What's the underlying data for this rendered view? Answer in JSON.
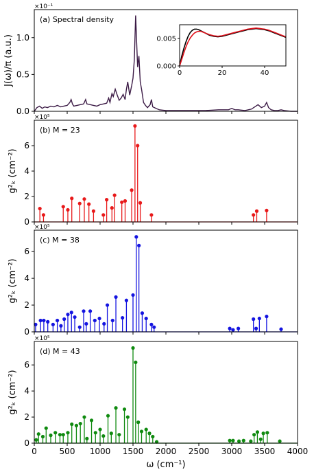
{
  "chart_data": [
    {
      "type": "line",
      "panel_label": "(a) Spectral density",
      "ylabel": "J(ω)/π (a.u.)",
      "y_multiplier": "×10⁻¹",
      "xlim": [
        0,
        4000
      ],
      "ylim": [
        0,
        1.38
      ],
      "yticks": [
        0.0,
        0.5,
        1.0
      ],
      "ytick_labels": [
        "0.0",
        "0.5",
        "1.0"
      ],
      "color": "#3b1a45",
      "x": [
        0,
        40,
        80,
        120,
        160,
        200,
        250,
        300,
        350,
        400,
        450,
        500,
        540,
        560,
        580,
        600,
        650,
        700,
        750,
        780,
        800,
        850,
        900,
        950,
        1000,
        1050,
        1100,
        1130,
        1150,
        1180,
        1200,
        1230,
        1260,
        1290,
        1320,
        1350,
        1380,
        1400,
        1420,
        1450,
        1480,
        1500,
        1520,
        1540,
        1555,
        1570,
        1590,
        1610,
        1630,
        1660,
        1690,
        1720,
        1760,
        1780,
        1800,
        1850,
        1900,
        2000,
        2200,
        2400,
        2600,
        2800,
        2950,
        3000,
        3050,
        3100,
        3200,
        3300,
        3350,
        3400,
        3450,
        3500,
        3530,
        3560,
        3600,
        3650,
        3700,
        3750,
        3800,
        3900,
        4000
      ],
      "y": [
        0.0,
        0.05,
        0.07,
        0.04,
        0.06,
        0.05,
        0.07,
        0.06,
        0.08,
        0.06,
        0.07,
        0.08,
        0.12,
        0.16,
        0.1,
        0.07,
        0.08,
        0.09,
        0.1,
        0.16,
        0.1,
        0.09,
        0.08,
        0.07,
        0.09,
        0.1,
        0.11,
        0.18,
        0.12,
        0.24,
        0.2,
        0.3,
        0.22,
        0.15,
        0.18,
        0.23,
        0.16,
        0.3,
        0.4,
        0.22,
        0.35,
        0.45,
        0.7,
        1.3,
        0.95,
        0.6,
        0.75,
        0.4,
        0.3,
        0.12,
        0.08,
        0.05,
        0.09,
        0.16,
        0.06,
        0.04,
        0.02,
        0.01,
        0.01,
        0.01,
        0.01,
        0.02,
        0.02,
        0.04,
        0.02,
        0.02,
        0.01,
        0.03,
        0.06,
        0.09,
        0.05,
        0.07,
        0.12,
        0.05,
        0.02,
        0.01,
        0.01,
        0.02,
        0.01,
        0.0,
        0.0
      ],
      "inset": {
        "xlim": [
          0,
          50
        ],
        "ylim": [
          0,
          0.0075
        ],
        "xticks": [
          0,
          20,
          40
        ],
        "xtick_labels": [
          "0",
          "20",
          "40"
        ],
        "yticks": [
          0.0,
          0.005
        ],
        "ytick_labels": [
          "0.000",
          "0.005"
        ],
        "series": [
          {
            "color": "#000000",
            "x": [
              0,
              1,
              2,
              3,
              4,
              5,
              6,
              7,
              8,
              9,
              10,
              12,
              14,
              16,
              18,
              20,
              22,
              24,
              26,
              28,
              30,
              32,
              34,
              36,
              38,
              40,
              42,
              44,
              46,
              48,
              50
            ],
            "y": [
              0.0,
              0.0018,
              0.0032,
              0.0044,
              0.0054,
              0.0061,
              0.0065,
              0.0067,
              0.0067,
              0.0066,
              0.0064,
              0.006,
              0.0056,
              0.0054,
              0.0053,
              0.0054,
              0.0056,
              0.0058,
              0.006,
              0.0062,
              0.0064,
              0.0066,
              0.0067,
              0.0068,
              0.0067,
              0.0066,
              0.0064,
              0.0061,
              0.0058,
              0.0055,
              0.0052
            ]
          },
          {
            "color": "#e0101a",
            "x": [
              0,
              1,
              2,
              3,
              4,
              5,
              6,
              7,
              8,
              9,
              10,
              12,
              14,
              16,
              18,
              20,
              22,
              24,
              26,
              28,
              30,
              32,
              34,
              36,
              38,
              40,
              42,
              44,
              46,
              48,
              50
            ],
            "y": [
              0.0,
              0.0012,
              0.0024,
              0.0035,
              0.0044,
              0.0051,
              0.0056,
              0.006,
              0.0062,
              0.0063,
              0.0063,
              0.006,
              0.0057,
              0.0055,
              0.0054,
              0.0055,
              0.0057,
              0.0059,
              0.0061,
              0.0063,
              0.0065,
              0.0067,
              0.0068,
              0.0069,
              0.0068,
              0.0067,
              0.0065,
              0.0062,
              0.0059,
              0.0056,
              0.0053
            ]
          }
        ]
      }
    },
    {
      "type": "stem",
      "panel_label": "(b) M = 23",
      "ylabel": "g²ₖ (cm⁻²)",
      "y_multiplier": "×10⁵",
      "xlim": [
        0,
        4000
      ],
      "ylim": [
        0,
        8.0
      ],
      "yticks": [
        0,
        2,
        4,
        6
      ],
      "ytick_labels": [
        "0",
        "2",
        "4",
        "6"
      ],
      "color": "#e8191a",
      "x": [
        85,
        140,
        440,
        510,
        570,
        690,
        760,
        830,
        900,
        1050,
        1100,
        1180,
        1220,
        1330,
        1380,
        1480,
        1530,
        1570,
        1610,
        1780,
        3330,
        3380,
        3530
      ],
      "y": [
        1.05,
        0.55,
        1.2,
        0.95,
        1.85,
        1.45,
        1.8,
        1.4,
        0.85,
        0.55,
        1.75,
        1.1,
        2.1,
        1.55,
        1.65,
        2.5,
        7.55,
        6.0,
        1.5,
        0.55,
        0.55,
        0.85,
        0.9
      ]
    },
    {
      "type": "stem",
      "panel_label": "(c) M = 38",
      "ylabel": "g²ₖ (cm⁻²)",
      "y_multiplier": "×10⁵",
      "xlim": [
        0,
        4000
      ],
      "ylim": [
        0,
        7.6
      ],
      "yticks": [
        0,
        2,
        4,
        6
      ],
      "ytick_labels": [
        "0",
        "2",
        "4",
        "6"
      ],
      "color": "#1414e0",
      "x": [
        20,
        95,
        145,
        205,
        285,
        350,
        405,
        455,
        510,
        565,
        615,
        690,
        750,
        790,
        850,
        920,
        990,
        1060,
        1110,
        1190,
        1240,
        1340,
        1400,
        1500,
        1550,
        1590,
        1640,
        1700,
        1780,
        1820,
        2970,
        3020,
        3100,
        3330,
        3370,
        3420,
        3530,
        3750
      ],
      "y": [
        0.55,
        0.85,
        0.85,
        0.75,
        0.55,
        0.85,
        0.45,
        0.95,
        1.3,
        1.45,
        1.1,
        0.35,
        1.55,
        0.6,
        1.55,
        0.85,
        1.0,
        0.6,
        2.0,
        0.85,
        2.6,
        1.05,
        2.35,
        2.75,
        7.1,
        6.45,
        1.4,
        1.0,
        0.55,
        0.35,
        0.25,
        0.15,
        0.25,
        0.95,
        0.25,
        1.0,
        1.15,
        0.2
      ]
    },
    {
      "type": "stem",
      "panel_label": "(d) M = 43",
      "ylabel": "g²ₖ (cm⁻²)",
      "y_multiplier": "×10⁵",
      "xlim": [
        0,
        4000
      ],
      "ylim": [
        0,
        7.8
      ],
      "yticks": [
        0,
        2,
        4,
        6
      ],
      "ytick_labels": [
        "0",
        "2",
        "4",
        "6"
      ],
      "color": "#0f8a0f",
      "x": [
        30,
        65,
        130,
        180,
        250,
        320,
        390,
        440,
        510,
        570,
        640,
        700,
        760,
        800,
        870,
        930,
        1000,
        1050,
        1120,
        1170,
        1240,
        1290,
        1370,
        1420,
        1500,
        1540,
        1580,
        1630,
        1700,
        1750,
        1800,
        1860,
        2970,
        3020,
        3110,
        3180,
        3290,
        3340,
        3390,
        3440,
        3480,
        3540,
        3730
      ],
      "y": [
        0.25,
        0.7,
        0.5,
        1.15,
        0.6,
        0.8,
        0.65,
        0.65,
        0.8,
        1.45,
        1.35,
        1.5,
        2.0,
        0.35,
        1.75,
        0.8,
        1.05,
        0.55,
        2.1,
        0.75,
        2.7,
        0.65,
        2.6,
        2.0,
        7.3,
        6.2,
        1.6,
        0.9,
        1.05,
        0.75,
        0.5,
        0.1,
        0.2,
        0.2,
        0.15,
        0.2,
        0.15,
        0.65,
        0.85,
        0.3,
        0.75,
        0.8,
        0.15
      ]
    }
  ],
  "x_axis": {
    "label": "ω (cm⁻¹)",
    "ticks": [
      0,
      500,
      1000,
      1500,
      2000,
      2500,
      3000,
      3500,
      4000
    ],
    "tick_labels": [
      "0",
      "500",
      "1000",
      "1500",
      "2000",
      "2500",
      "3000",
      "3500",
      "4000"
    ]
  }
}
